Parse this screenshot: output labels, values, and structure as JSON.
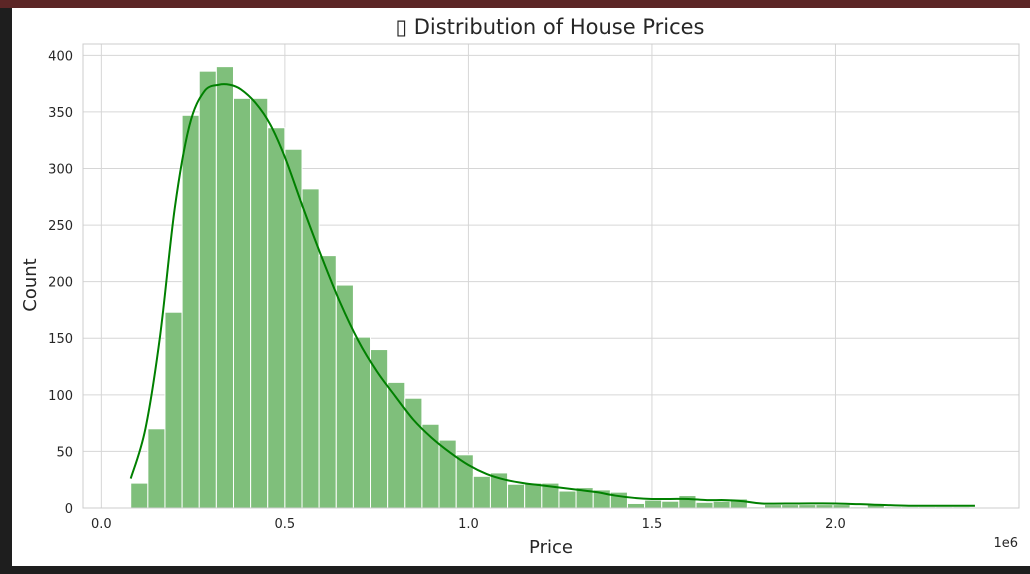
{
  "chart_data": {
    "type": "bar",
    "title": "▯ Distribution of House Prices",
    "xlabel": "Price",
    "ylabel": "Count",
    "x_offset_label": "1e6",
    "xlim": [
      -0.05,
      2.5
    ],
    "ylim": [
      0,
      410
    ],
    "x_ticks": [
      0.0,
      0.5,
      1.0,
      1.5,
      2.0
    ],
    "x_tick_labels": [
      "0.0",
      "0.5",
      "1.0",
      "1.5",
      "2.0"
    ],
    "y_ticks": [
      0,
      50,
      100,
      150,
      200,
      250,
      300,
      350,
      400
    ],
    "y_tick_labels": [
      "0",
      "50",
      "100",
      "150",
      "200",
      "250",
      "300",
      "350",
      "400"
    ],
    "grid": true,
    "bar_color": "#7fbf7b",
    "bar_edge_color": "#ffffff",
    "kde_color": "#008000",
    "bin_edges": [
      0.08,
      0.1267,
      0.1733,
      0.22,
      0.2667,
      0.3133,
      0.36,
      0.4067,
      0.4533,
      0.5,
      0.5467,
      0.5933,
      0.64,
      0.6867,
      0.7333,
      0.78,
      0.8267,
      0.8733,
      0.92,
      0.9667,
      1.0133,
      1.06,
      1.1067,
      1.1533,
      1.2,
      1.2467,
      1.2933,
      1.34,
      1.3867,
      1.4333,
      1.48,
      1.5267,
      1.5733,
      1.62,
      1.6667,
      1.7133,
      1.76,
      1.8067,
      1.8533,
      1.9,
      1.9467,
      1.9933,
      2.04,
      2.0867,
      2.1333,
      2.18,
      2.2267,
      2.2733,
      2.32,
      2.3667
    ],
    "counts": [
      22,
      70,
      173,
      347,
      386,
      390,
      362,
      362,
      336,
      317,
      282,
      223,
      197,
      151,
      140,
      111,
      97,
      74,
      60,
      47,
      28,
      31,
      21,
      22,
      22,
      15,
      18,
      16,
      14,
      4,
      7,
      6,
      11,
      5,
      6,
      8,
      1,
      3,
      3,
      3,
      3,
      3,
      1,
      3,
      1,
      1,
      1,
      1,
      1
    ],
    "kde": {
      "x": [
        0.08,
        0.12,
        0.16,
        0.2,
        0.24,
        0.28,
        0.32,
        0.35,
        0.38,
        0.42,
        0.46,
        0.5,
        0.55,
        0.6,
        0.65,
        0.7,
        0.75,
        0.8,
        0.85,
        0.9,
        0.95,
        1.0,
        1.05,
        1.1,
        1.15,
        1.2,
        1.25,
        1.3,
        1.35,
        1.4,
        1.45,
        1.5,
        1.55,
        1.6,
        1.65,
        1.7,
        1.75,
        1.8,
        1.9,
        2.0,
        2.1,
        2.2,
        2.3,
        2.38
      ],
      "y": [
        26,
        70,
        152,
        265,
        338,
        368,
        374,
        374,
        370,
        358,
        339,
        310,
        265,
        222,
        182,
        148,
        121,
        99,
        78,
        62,
        49,
        38,
        30,
        25,
        22,
        20,
        18,
        16,
        14,
        11,
        9,
        8,
        8,
        8,
        7,
        7,
        6,
        4,
        4,
        4,
        3,
        2,
        2,
        2
      ]
    }
  }
}
